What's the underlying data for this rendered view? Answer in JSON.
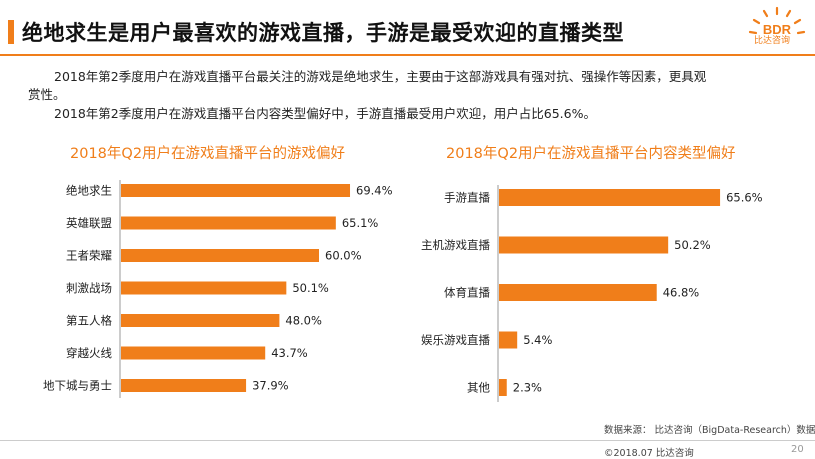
{
  "header": {
    "title": "绝地求生是用户最喜欢的游戏直播，手游是最受欢迎的直播类型",
    "logo_text": "BDR",
    "logo_sub": "比达咨询"
  },
  "body": {
    "para1_line1": "2018年第2季度用户在游戏直播平台最关注的游戏是绝地求生，主要由于这部游戏具有强对抗、强操作等因素，更具观",
    "para1_line2": "赏性。",
    "para2": "2018年第2季度用户在游戏直播平台内容类型偏好中，手游直播最受用户欢迎，用户占比65.6%。"
  },
  "footer": {
    "source": "数据来源：  比达咨询（BigData-Research）数据中心",
    "date": "©2018.07    比达咨询",
    "page": "20"
  },
  "colors": {
    "accent": "#f07e1a"
  },
  "chart_data": [
    {
      "type": "bar",
      "orientation": "horizontal",
      "title": "2018年Q2用户在游戏直播平台的游戏偏好",
      "categories": [
        "绝地求生",
        "英雄联盟",
        "王者荣耀",
        "刺激战场",
        "第五人格",
        "穿越火线",
        "地下城与勇士"
      ],
      "values": [
        69.4,
        65.1,
        60.0,
        50.1,
        48.0,
        43.7,
        37.9
      ],
      "value_labels": [
        "69.4%",
        "65.1%",
        "60.0%",
        "50.1%",
        "48.0%",
        "43.7%",
        "37.9%"
      ],
      "xlim": [
        0,
        100
      ],
      "grid": false,
      "bar_color": "#f07e1a"
    },
    {
      "type": "bar",
      "orientation": "horizontal",
      "title": "2018年Q2用户在游戏直播平台内容类型偏好",
      "categories": [
        "手游直播",
        "主机游戏直播",
        "体育直播",
        "娱乐游戏直播",
        "其他"
      ],
      "values": [
        65.6,
        50.2,
        46.8,
        5.4,
        2.3
      ],
      "value_labels": [
        "65.6%",
        "50.2%",
        "46.8%",
        "5.4%",
        "2.3%"
      ],
      "xlim": [
        0,
        100
      ],
      "grid": false,
      "bar_color": "#f07e1a"
    }
  ]
}
